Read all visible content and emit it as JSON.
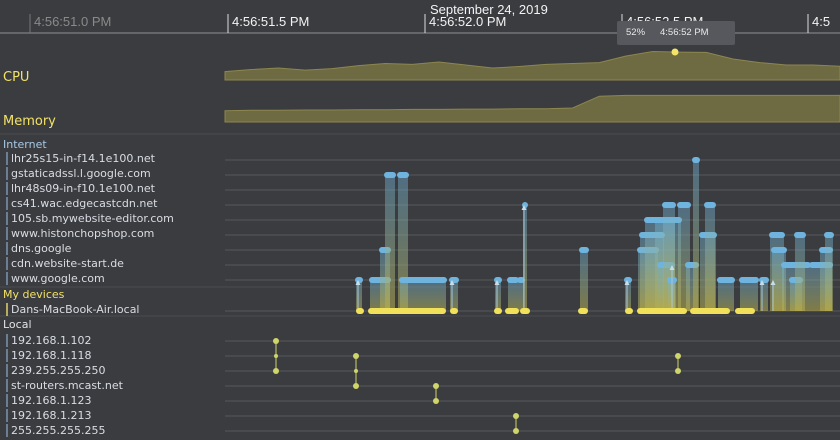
{
  "timeline": {
    "date": "September 24, 2019",
    "ticks": [
      {
        "label": "4:56:51.0 PM",
        "dim": true
      },
      {
        "label": "4:56:51.5 PM",
        "dim": false
      },
      {
        "label": "4:56:52.0 PM",
        "dim": false
      },
      {
        "label": "4:56:52.5 PM",
        "dim": false
      },
      {
        "label": "4:5",
        "dim": false
      }
    ]
  },
  "tooltip": {
    "value": "52%",
    "time": "4:56:52 PM"
  },
  "metrics": {
    "cpu_label": "CPU",
    "memory_label": "Memory",
    "cpu_series": [
      0.28,
      0.35,
      0.4,
      0.33,
      0.38,
      0.48,
      0.55,
      0.52,
      0.6,
      0.5,
      0.4,
      0.45,
      0.52,
      0.55,
      0.58,
      0.8,
      0.95,
      0.93,
      0.92,
      0.7,
      0.58,
      0.5,
      0.5,
      0.46
    ],
    "memory_series": [
      0.4,
      0.42,
      0.42,
      0.43,
      0.43,
      0.44,
      0.44,
      0.45,
      0.45,
      0.46,
      0.46,
      0.47,
      0.47,
      0.5,
      0.92,
      0.95,
      0.95,
      0.95,
      0.95,
      0.95,
      0.95,
      0.95,
      0.95,
      0.95
    ]
  },
  "sections": {
    "internet": "Internet",
    "devices": "My devices",
    "local": "Local"
  },
  "internet_hosts": [
    "lhr25s15-in-f14.1e100.net",
    "gstaticadssl.l.google.com",
    "lhr48s09-in-f10.1e100.net",
    "cs41.wac.edgecastcdn.net",
    "105.sb.mywebsite-editor.com",
    "www.histonchopshop.com",
    "dns.google",
    "cdn.website-start.de",
    "www.google.com"
  ],
  "devices": [
    "Dans-MacBook-Air.local"
  ],
  "local_hosts": [
    "192.168.1.102",
    "192.168.1.118",
    "239.255.255.250",
    "st-routers.mcast.net",
    "192.168.1.123",
    "192.168.1.213",
    "255.255.255.255"
  ],
  "colors": {
    "background": "#3b3c40",
    "cpu_fill": "#6e6a42",
    "line_accent": "#f2e266",
    "internet_bar": "#6fb4de",
    "device_bar": "#f0e05a",
    "local_node": "#cfd56a"
  }
}
